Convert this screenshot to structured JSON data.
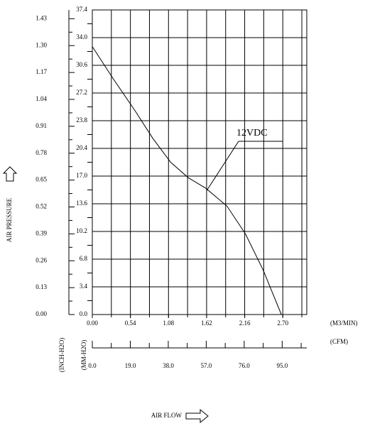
{
  "chart_data": {
    "type": "line",
    "x": [
      0,
      0.3,
      0.6,
      0.86,
      1.11,
      1.36,
      1.61,
      1.91,
      2.17,
      2.42,
      2.68
    ],
    "series": [
      {
        "name": "12VDC",
        "color": "#000000",
        "values": [
          32.9,
          28.9,
          25.1,
          21.6,
          18.7,
          16.8,
          15.5,
          13.3,
          9.9,
          5.5,
          0
        ]
      }
    ],
    "xlim": [
      0,
      3.04
    ],
    "xticks": [
      {
        "value": 0,
        "label": "0.00"
      },
      0.54,
      1.08,
      1.62,
      2.16,
      {
        "value": 2.7,
        "label": "2.70"
      }
    ],
    "x_grid": [
      0.27,
      0.54,
      0.81,
      1.08,
      1.35,
      1.62,
      1.89,
      2.16,
      2.43,
      2.7,
      2.97
    ],
    "xlabel": "(M3/MIN)",
    "ylim": [
      0,
      37.4
    ],
    "yticks": [
      {
        "value": 0,
        "label": "0.0"
      },
      3.4,
      6.8,
      10.2,
      13.6,
      {
        "value": 17,
        "label": "17.0"
      },
      20.4,
      23.8,
      27.2,
      30.6,
      {
        "value": 34,
        "label": "34.0"
      },
      37.4
    ],
    "y_minor": [
      1.7,
      5.1,
      8.5,
      11.9,
      15.3,
      18.7,
      22.1,
      25.5,
      28.9,
      32.3,
      35.7
    ],
    "ylabel": "(MM-H2O)",
    "y2lim": [
      0,
      1.4724
    ],
    "y2ticks": [
      {
        "value": 0,
        "label": "0.00"
      },
      0.13,
      0.26,
      0.39,
      0.52,
      0.65,
      0.78,
      0.91,
      1.04,
      1.17,
      {
        "value": 1.3,
        "label": "1.30"
      },
      1.43
    ],
    "y2_minor": [
      0.065,
      0.195,
      0.325,
      0.455,
      0.585,
      0.715,
      0.845,
      0.975,
      1.105,
      1.235,
      1.365
    ],
    "y2label": "(INCH-H2O)",
    "x2lim": [
      0,
      107.3
    ],
    "x2ticks": [
      {
        "value": 0,
        "label": "0.0"
      },
      {
        "value": 19,
        "label": "19.0"
      },
      {
        "value": 38,
        "label": "38.0"
      },
      {
        "value": 57,
        "label": "57.0"
      },
      {
        "value": 76,
        "label": "76.0"
      },
      {
        "value": 95,
        "label": "95.0"
      }
    ],
    "x2_minor": [
      9.5,
      28.5,
      47.5,
      66.5,
      85.5,
      104.5
    ],
    "x2label": "(CFM)",
    "pressure_title": "AIR PRESSURE",
    "flow_title": "AIR FLOW",
    "grid": true
  }
}
